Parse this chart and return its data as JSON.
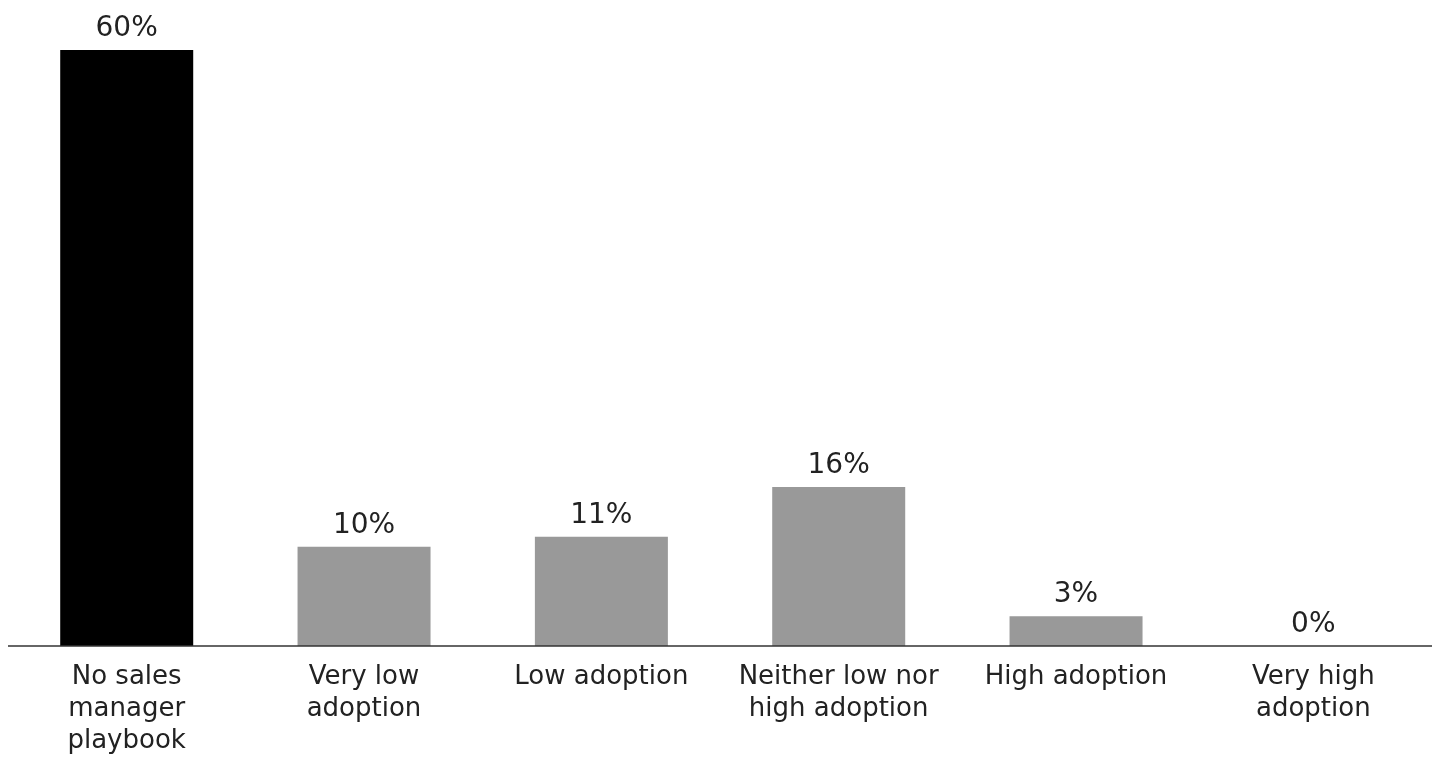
{
  "chart_data": {
    "type": "bar",
    "categories": [
      "No sales manager playbook",
      "Very low adoption",
      "Low adoption",
      "Neither low nor high adoption",
      "High adoption",
      "Very high adoption"
    ],
    "values": [
      60,
      10,
      11,
      16,
      3,
      0
    ],
    "colors": [
      "#000000",
      "#999999",
      "#999999",
      "#999999",
      "#999999",
      "#999999"
    ],
    "value_labels": [
      "60%",
      "10%",
      "11%",
      "16%",
      "3%",
      "0%"
    ],
    "grid": false,
    "legend": false
  }
}
